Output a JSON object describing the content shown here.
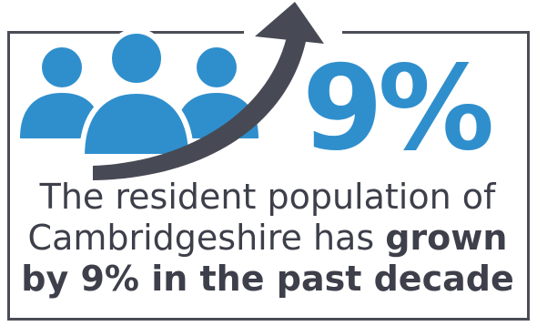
{
  "colors": {
    "accent": "#2f8fcd",
    "dark": "#474a54"
  },
  "headline": {
    "stat": "9%"
  },
  "caption": {
    "line1": "The resident population of",
    "line2_regular": "Cambridgeshire has ",
    "line2_bold": "grown",
    "line3_bold": "by 9% in the past decade"
  },
  "icons": {
    "people": "people-group-icon",
    "arrow": "upward-trend-arrow-icon"
  }
}
